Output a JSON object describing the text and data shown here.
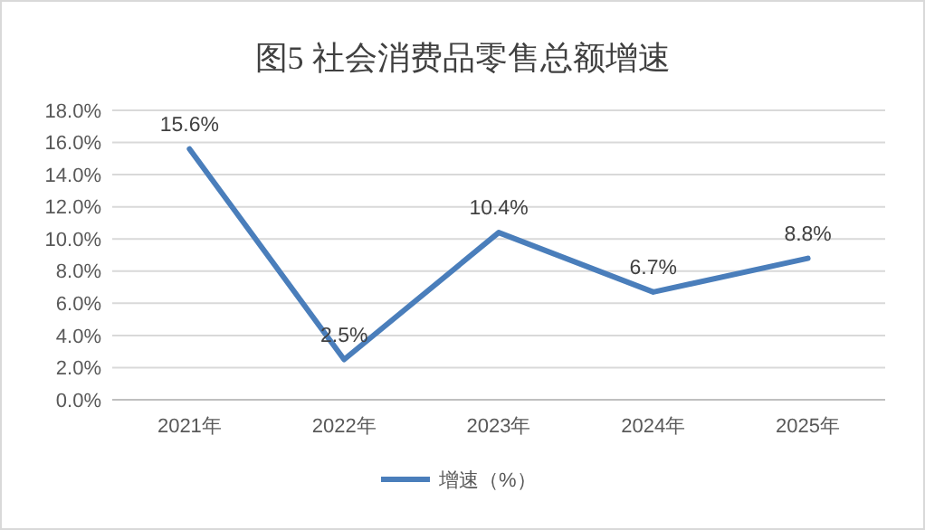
{
  "chart_data": {
    "type": "line",
    "title": "图5 社会消费品零售总额增速",
    "categories": [
      "2021年",
      "2022年",
      "2023年",
      "2024年",
      "2025年"
    ],
    "series": [
      {
        "name": "增速（%）",
        "color": "#4a7ebb",
        "values": [
          15.6,
          2.5,
          10.4,
          6.7,
          8.8
        ],
        "value_labels": [
          "15.6%",
          "2.5%",
          "10.4%",
          "6.7%",
          "8.8%"
        ]
      }
    ],
    "ylim": [
      0,
      18
    ],
    "yticks": [
      {
        "value": 0,
        "label": "0.0%"
      },
      {
        "value": 2,
        "label": "2.0%"
      },
      {
        "value": 4,
        "label": "4.0%"
      },
      {
        "value": 6,
        "label": "6.0%"
      },
      {
        "value": 8,
        "label": "8.0%"
      },
      {
        "value": 10,
        "label": "10.0%"
      },
      {
        "value": 12,
        "label": "12.0%"
      },
      {
        "value": 14,
        "label": "14.0%"
      },
      {
        "value": 16,
        "label": "16.0%"
      },
      {
        "value": 18,
        "label": "18.0%"
      }
    ],
    "grid": "y",
    "legend": "bottom",
    "marker": "none",
    "line_style": "solid"
  }
}
